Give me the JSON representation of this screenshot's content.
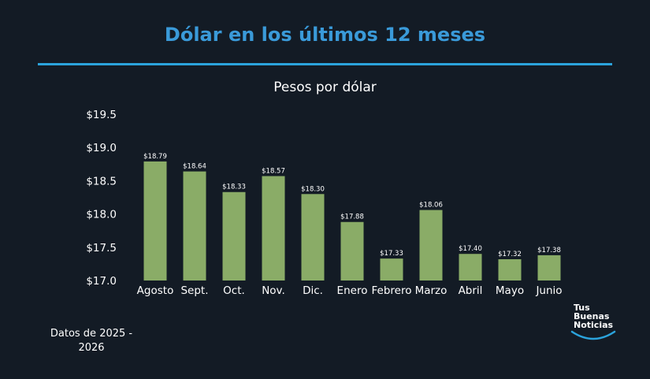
{
  "chart_data": {
    "type": "bar",
    "title": "Dólar en los últimos 12 meses",
    "subtitle": "Pesos por dólar",
    "categories": [
      "Agosto",
      "Sept.",
      "Oct.",
      "Nov.",
      "Dic.",
      "Enero",
      "Febrero",
      "Marzo",
      "Abril",
      "Mayo",
      "Junio"
    ],
    "values": [
      18.79,
      18.64,
      18.33,
      18.57,
      18.3,
      17.88,
      17.33,
      18.06,
      17.4,
      17.32,
      17.38
    ],
    "value_labels": [
      "$18.79",
      "$18.64",
      "$18.33",
      "$18.57",
      "$18.30",
      "$17.88",
      "$17.33",
      "$18.06",
      "$17.40",
      "$17.32",
      "$17.38"
    ],
    "yticks": [
      17.0,
      17.5,
      18.0,
      18.5,
      19.0,
      19.5
    ],
    "ytick_labels": [
      "$17.0",
      "$17.5",
      "$18.0",
      "$18.5",
      "$19.0",
      "$19.5"
    ],
    "ylim": [
      17.0,
      19.5
    ],
    "xlabel": "",
    "ylabel": "",
    "grid": false,
    "bar_color": "#8aac67"
  },
  "footnote": "Datos de 2025 - 2026",
  "logo": {
    "line1": "Tus",
    "line2": "Buenas",
    "line3": "Noticias"
  },
  "colors": {
    "background": "#131b25",
    "title": "#3a9ad9",
    "rule": "#2ba3dc",
    "logo_arc": "#2ba3dc"
  }
}
